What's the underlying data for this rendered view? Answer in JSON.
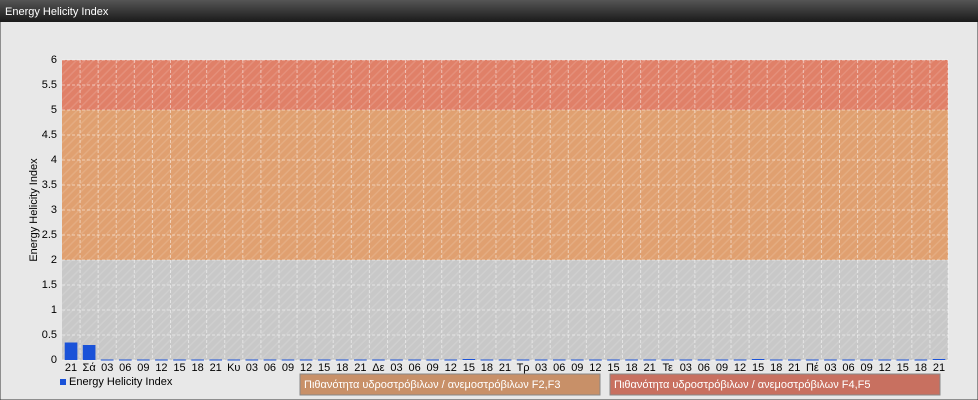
{
  "chart_data": {
    "type": "bar",
    "window_title": "Energy Helicity Index",
    "ylabel": "Energy Helicity Index",
    "categories": [
      "21",
      "Σά",
      "03",
      "06",
      "09",
      "12",
      "15",
      "18",
      "21",
      "Κυ",
      "03",
      "06",
      "09",
      "12",
      "15",
      "18",
      "21",
      "Δε",
      "03",
      "06",
      "09",
      "12",
      "15",
      "18",
      "21",
      "Τρ",
      "03",
      "06",
      "09",
      "12",
      "15",
      "18",
      "21",
      "Τε",
      "03",
      "06",
      "09",
      "12",
      "15",
      "18",
      "21",
      "Πέ",
      "03",
      "06",
      "09",
      "12",
      "15",
      "18",
      "21"
    ],
    "series": [
      {
        "name": "Energy Helicity Index",
        "color": "#1a52d8",
        "values": [
          0.35,
          0.3,
          0.01,
          0.01,
          0.01,
          0.01,
          0.01,
          0.01,
          0.01,
          0.01,
          0.01,
          0.01,
          0.01,
          0.01,
          0.01,
          0.01,
          0.01,
          0.01,
          0.01,
          0.01,
          0.01,
          0.01,
          0.02,
          0.01,
          0.01,
          0.01,
          0.01,
          0.01,
          0.01,
          0.01,
          0.01,
          0.01,
          0.01,
          0.01,
          0.01,
          0.01,
          0.01,
          0.01,
          0.02,
          0.01,
          0.01,
          0.01,
          0.01,
          0.01,
          0.01,
          0.01,
          0.01,
          0.01,
          0.02
        ]
      }
    ],
    "bands": [
      {
        "from": 0,
        "to": 2,
        "color": "#c8c8c8"
      },
      {
        "from": 2,
        "to": 5,
        "color": "#e0a070",
        "name": "Πιθανότητα υδροστρόβιλων / ανεμοστρόβιλων F2,F3",
        "legend_color": "#c89068"
      },
      {
        "from": 5,
        "to": 6,
        "color": "#e08068",
        "name": "Πιθανότητα υδροστρόβιλων / ανεμοστρόβιλων F4,F5",
        "legend_color": "#c87060"
      }
    ],
    "ylim": [
      0,
      6
    ],
    "yticks": [
      0,
      0.5,
      1,
      1.5,
      2,
      2.5,
      3,
      3.5,
      4,
      4.5,
      5,
      5.5,
      6
    ],
    "grid": true
  }
}
